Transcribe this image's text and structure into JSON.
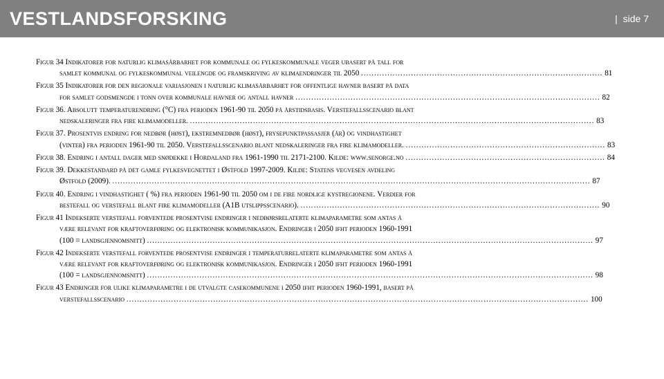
{
  "header": {
    "logo": "VESTLANDSFORSKING",
    "page_label": "side 7",
    "separator": "|"
  },
  "colors": {
    "header_bg": "#808080",
    "header_text": "#ffffff",
    "body_text": "#000000",
    "page_bg": "#ffffff"
  },
  "entries": [
    {
      "line1": "Figur 34 Indikatorer for naturlig klimasårbarhet for kommunale og fylkeskommunale veger ubasert på tall for",
      "line2_text": "samlet kommunal og fylkeskommunal veilengde og framskriving av klimaendringer til 2050",
      "page": "81"
    },
    {
      "line1": "Figur 35 Indikatorer for den regionale variasjonen i naturlig klimasårbarhet for offentlige havner basert på data",
      "line2_text": "for samlet godsmengde i tonn over kommunale havner og antall havner",
      "page": "82"
    },
    {
      "line1": "Figur 36. Absolutt temperaturendring (°C) fra perioden 1961-90 til 2050 på årstidsbasis. Verstefallsscenario blant",
      "line2_text": "nedskaleringer fra fire klimamodeller.",
      "page": "83"
    },
    {
      "line1": "Figur 37. Prosentvis endring for nedbør (høst), ekstremnedbør (høst), frysepunktpassasjer (år) og vindhastighet",
      "line2_text": "(vinter) fra perioden 1961-90 til 2050. Verstefallsscenario blant nedskaleringer fra fire klimamodeller.",
      "page": "83"
    },
    {
      "line1_text": "Figur 38. Endring i antall dager med snødekke i Hordaland fra 1961-1990 til 2171-2100. Kilde: www.senorge.no",
      "line1_page": "84",
      "single": true
    },
    {
      "line1": "Figur 39. Dekkestandard på det gamle fylkesvegnettet i Østfold 1997-2009. Kilde: Statens vegvesen avdeling",
      "line2_text": "Østfold (2009).",
      "page": "87"
    },
    {
      "line1": "Figur 40. Endring i vindhastighet ( %) fra perioden 1961-90 til 2050 om i de fire nordlige kystregionene. Verdier for",
      "line2_text": "bestefall og verstefall blant fire klimamodeller (A1B utslippsscenario).",
      "page": "90"
    },
    {
      "line1": "Figur 41 Indekserte verstefall forventede prosentvise endringer i nedbørsrelaterte klimaparametre som antas å",
      "line2": "være relevant for kraftoverføring og elektronisk kommunikasjon. Endringer i 2050 ifht perioden 1960-1991",
      "line3_text": "(100 = landsgjennomsnitt)",
      "page": "97",
      "three": true
    },
    {
      "line1": "Figur 42 Indekserte verstefall forventede prosentvise endringer i temperaturrelaterte klimaparametre som antas å",
      "line2": "være relevant for kraftoverføring og elektronisk kommunikasjon. Endringer i 2050 ifht perioden 1960-1991",
      "line3_text": "(100 = landsgjennomsnitt)",
      "page": "98",
      "three": true
    },
    {
      "line1": "Figur 43 Endringer for ulike klimaparametre i de utvalgte casekommunene i 2050 ifht perioden 1960-1991, basert på",
      "line2_text": "verstefallsscenario",
      "page": "100"
    }
  ]
}
